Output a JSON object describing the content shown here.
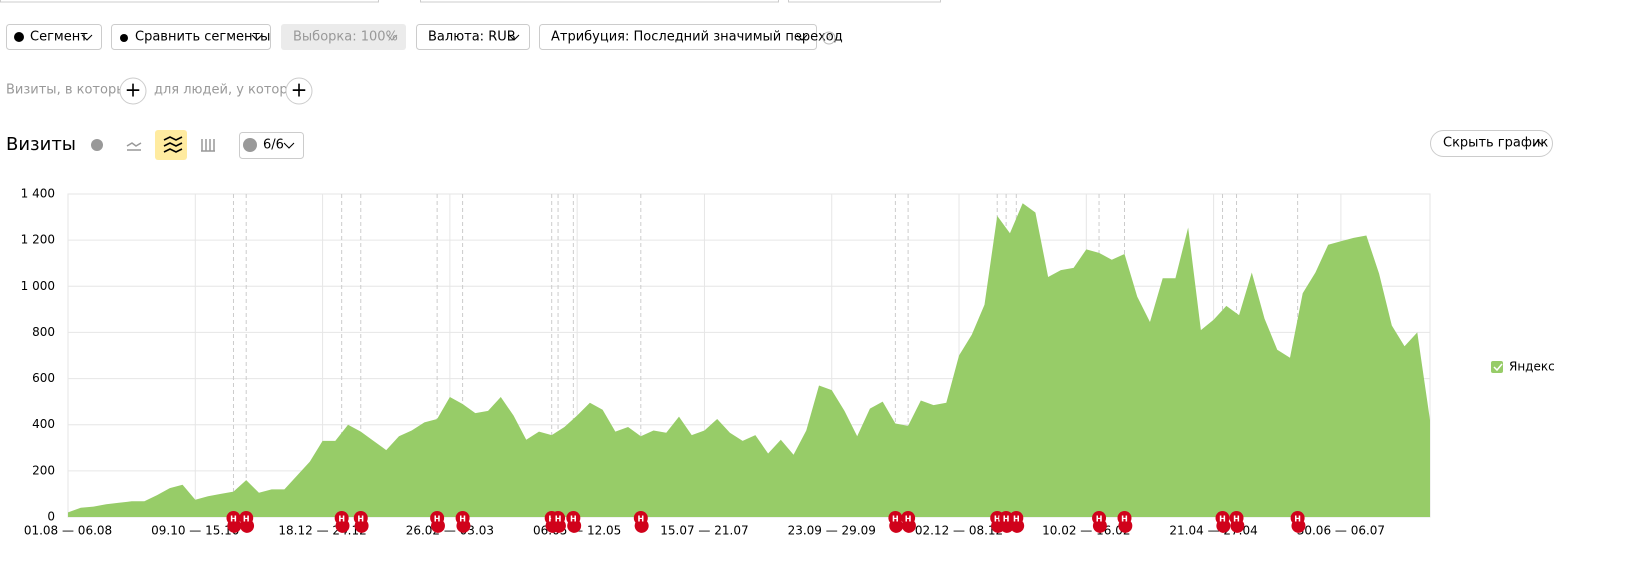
{
  "toolbar": {
    "segment": "Сегмент",
    "compare": "Сравнить сегменты",
    "sample": "Выборка: 100%",
    "currency": "Валюта: RUB",
    "attribution": "Атрибуция: Последний значимый переход",
    "help": "?"
  },
  "filters": {
    "visits_where": "Визиты, в которых",
    "people_where": "для людей, у которых",
    "add": "+"
  },
  "report": {
    "series_count": "6/6",
    "hide_chart": "Скрыть график"
  },
  "chart_data": {
    "type": "area",
    "title": "Визиты",
    "categories": [
      "01.08 — 06.08",
      null,
      null,
      null,
      null,
      null,
      null,
      null,
      null,
      null,
      "09.10 — 15.10",
      null,
      null,
      null,
      null,
      null,
      null,
      null,
      null,
      null,
      "18.12 — 24.12",
      null,
      null,
      null,
      null,
      null,
      null,
      null,
      null,
      null,
      "26.02 — 03.03",
      null,
      null,
      null,
      null,
      null,
      null,
      null,
      null,
      null,
      "06.05 — 12.05",
      null,
      null,
      null,
      null,
      null,
      null,
      null,
      null,
      null,
      "15.07 — 21.07",
      null,
      null,
      null,
      null,
      null,
      null,
      null,
      null,
      null,
      "23.09 — 29.09",
      null,
      null,
      null,
      null,
      null,
      null,
      null,
      null,
      null,
      "02.12 — 08.12",
      null,
      null,
      null,
      null,
      null,
      null,
      null,
      null,
      null,
      "10.02 — 16.02",
      null,
      null,
      null,
      null,
      null,
      null,
      null,
      null,
      null,
      "21.04 — 27.04",
      null,
      null,
      null,
      null,
      null,
      null,
      null,
      null,
      null,
      "30.06 — 06.07",
      null,
      null,
      null,
      null,
      null,
      null,
      null
    ],
    "series": [
      {
        "name": "Яндекс",
        "color": "#97cc68",
        "values": [
          20,
          40,
          45,
          55,
          62,
          68,
          68,
          95,
          125,
          140,
          75,
          90,
          100,
          110,
          160,
          105,
          120,
          120,
          180,
          240,
          330,
          330,
          400,
          370,
          330,
          290,
          350,
          375,
          410,
          425,
          520,
          490,
          450,
          460,
          520,
          440,
          335,
          370,
          355,
          390,
          440,
          495,
          465,
          370,
          390,
          350,
          375,
          365,
          435,
          355,
          375,
          425,
          365,
          330,
          355,
          275,
          335,
          270,
          375,
          570,
          550,
          460,
          350,
          470,
          500,
          405,
          395,
          505,
          485,
          495,
          700,
          790,
          920,
          1305,
          1230,
          1360,
          1320,
          1040,
          1070,
          1080,
          1160,
          1145,
          1115,
          1140,
          955,
          845,
          1035,
          1035,
          1255,
          810,
          855,
          915,
          875,
          1060,
          860,
          725,
          690,
          970,
          1060,
          1180,
          1195,
          1210,
          1220,
          1055,
          830,
          740,
          800,
          420
        ]
      }
    ],
    "ylim": [
      0,
      1400
    ],
    "yticks": [
      0,
      200,
      400,
      600,
      800,
      {
        "value": 1000,
        "label": "1 000"
      },
      {
        "value": 1200,
        "label": "1 200"
      },
      {
        "value": 1400,
        "label": "1 400"
      }
    ],
    "grid": true,
    "legend": "right",
    "annotations": {
      "label": "Н",
      "color": "#d0021b",
      "x": [
        13,
        14,
        21.5,
        23,
        29,
        31,
        38,
        38.5,
        39.7,
        45,
        65,
        66,
        73,
        73.7,
        74.5,
        81,
        83,
        90.7,
        91.8,
        96.6
      ]
    }
  }
}
